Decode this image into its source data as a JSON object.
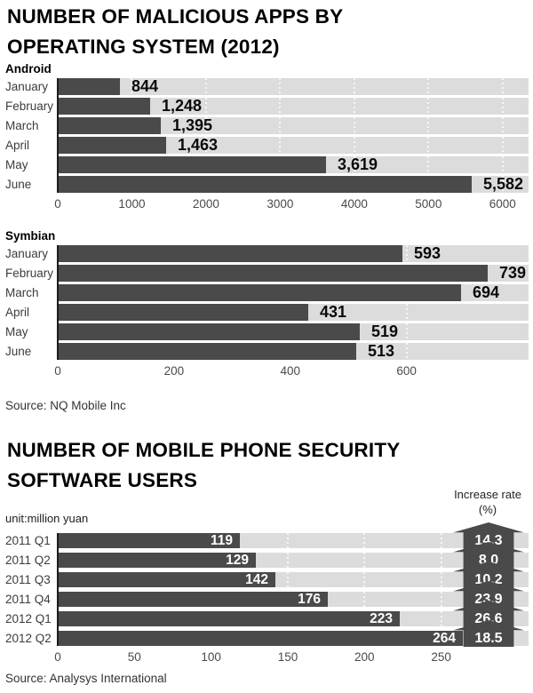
{
  "page": {
    "section1": {
      "title_lines": [
        "NUMBER OF MALICIOUS APPS BY",
        "OPERATING SYSTEM (2012)"
      ],
      "source": "Source: NQ Mobile Inc"
    },
    "section2": {
      "title_lines": [
        "NUMBER OF MOBILE PHONE SECURITY",
        "SOFTWARE USERS"
      ],
      "unit_label": "unit:million yuan",
      "increase_rate_label_lines": [
        "Increase rate",
        "(%)"
      ],
      "source": "Source: Analysys International"
    }
  },
  "colors": {
    "bar_dark": "#4a4a4a",
    "track_light": "#dcdcdc",
    "gridline_dots": "#f6f6f6",
    "axis_line": "#1c1c1c",
    "value_text": "#0a0a0a",
    "inside_value_text": "#ffffff",
    "background": "#ffffff"
  },
  "chart_data": [
    {
      "id": "android",
      "type": "bar",
      "title": "Android",
      "categories": [
        "January",
        "February",
        "March",
        "April",
        "May",
        "June"
      ],
      "values": [
        844,
        1248,
        1395,
        1463,
        3619,
        5582
      ],
      "value_labels": [
        "844",
        "1,248",
        "1,395",
        "1,463",
        "3,619",
        "5,582"
      ],
      "xticks": [
        0,
        1000,
        2000,
        3000,
        4000,
        5000,
        6000
      ],
      "xlim": [
        0,
        6350
      ],
      "xlabel": "",
      "ylabel": "",
      "grid": "dotted-vertical",
      "legend": "none",
      "value_label_position": "outside-right"
    },
    {
      "id": "symbian",
      "type": "bar",
      "title": "Symbian",
      "categories": [
        "January",
        "February",
        "March",
        "April",
        "May",
        "June"
      ],
      "values": [
        593,
        739,
        694,
        431,
        519,
        513
      ],
      "value_labels": [
        "593",
        "739",
        "694",
        "431",
        "519",
        "513"
      ],
      "xticks": [
        0,
        200,
        400,
        600
      ],
      "xlim": [
        0,
        810
      ],
      "xlabel": "",
      "ylabel": "",
      "grid": "dotted-vertical",
      "legend": "none",
      "value_label_position": "outside-right"
    },
    {
      "id": "security-software-users",
      "type": "bar",
      "title": "",
      "categories": [
        "2011 Q1",
        "2011 Q2",
        "2011 Q3",
        "2011 Q4",
        "2012 Q1",
        "2012 Q2"
      ],
      "values": [
        119,
        129,
        142,
        176,
        223,
        264
      ],
      "value_labels": [
        "119",
        "129",
        "142",
        "176",
        "223",
        "264"
      ],
      "increase_rate": {
        "label": "Increase rate (%)",
        "values": [
          14.3,
          8.0,
          10.2,
          23.9,
          26.6,
          18.5
        ],
        "labels": [
          "14.3",
          "8.0",
          "10.2",
          "23.9",
          "26.6",
          "18.5"
        ]
      },
      "xticks": [
        0,
        50,
        100,
        150,
        200,
        250
      ],
      "xlim": [
        0,
        307
      ],
      "xlabel": "",
      "ylabel": "",
      "grid": "dotted-vertical",
      "legend": "none",
      "value_label_position": "inside-right"
    }
  ]
}
